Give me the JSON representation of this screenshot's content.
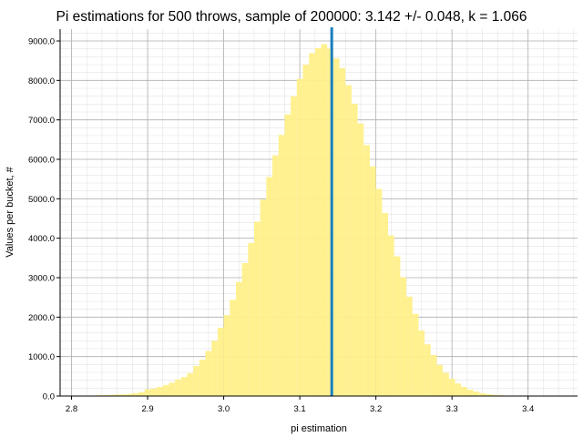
{
  "chart_data": {
    "type": "bar",
    "title": "Pi estimations for 500 throws, sample of 200000: 3.142 +/- 0.048, k = 1.066",
    "xlabel": "pi estimation",
    "ylabel": "Values per bucket, #",
    "xlim": [
      2.785,
      3.465
    ],
    "ylim": [
      0,
      9300
    ],
    "xticks": [
      "2.8",
      "2.9",
      "3.0",
      "3.1",
      "3.2",
      "3.3",
      "3.4"
    ],
    "yticks": [
      "0.0",
      "1000.0",
      "2000.0",
      "3000.0",
      "4000.0",
      "5000.0",
      "6000.0",
      "7000.0",
      "8000.0",
      "9000.0"
    ],
    "grid": "major and minor",
    "bin_start": 2.792,
    "bin_width": 0.008,
    "values": [
      10,
      10,
      10,
      10,
      10,
      20,
      20,
      30,
      40,
      40,
      50,
      70,
      100,
      170,
      190,
      230,
      280,
      340,
      420,
      480,
      580,
      760,
      920,
      1140,
      1400,
      1730,
      2050,
      2440,
      2890,
      3370,
      3880,
      4420,
      4980,
      5550,
      6100,
      6620,
      7140,
      7600,
      8040,
      8400,
      8690,
      8820,
      8920,
      8810,
      8560,
      8310,
      7880,
      7410,
      6910,
      6360,
      5820,
      5250,
      4640,
      4070,
      3540,
      3010,
      2520,
      2080,
      1660,
      1310,
      1040,
      790,
      590,
      440,
      320,
      230,
      160,
      110,
      70,
      45,
      30,
      20,
      12,
      8,
      5,
      3,
      2,
      1
    ],
    "mean_line": 3.142,
    "colors": {
      "bars": "#fff08a",
      "mean_line": "#1a7fc0",
      "grid_major": "#b0b0b0",
      "grid_minor": "#e4e4e4"
    }
  }
}
